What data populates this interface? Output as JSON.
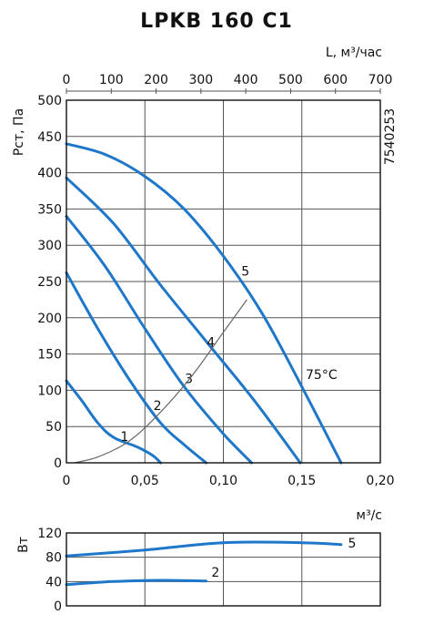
{
  "chart_data": [
    {
      "type": "line",
      "title": "LPKB 160 C1",
      "code": "7540253",
      "ylabel": "Рст, Па",
      "xlabel": "м³/с",
      "x2label": "L, м³/час",
      "xlim": [
        0,
        0.2
      ],
      "ylim": [
        0,
        500
      ],
      "x2lim": [
        0,
        700
      ],
      "x_ticks": [
        "0",
        "0,05",
        "0,10",
        "0,15",
        "0,20"
      ],
      "x_tick_values": [
        0,
        0.05,
        0.1,
        0.15,
        0.2
      ],
      "y_ticks": [
        "0",
        "50",
        "100",
        "150",
        "200",
        "250",
        "300",
        "350",
        "400",
        "450",
        "500"
      ],
      "y_tick_values": [
        0,
        50,
        100,
        150,
        200,
        250,
        300,
        350,
        400,
        450,
        500
      ],
      "x2_ticks": [
        "0",
        "100",
        "200",
        "300",
        "400",
        "500",
        "600",
        "700"
      ],
      "x2_tick_values": [
        0,
        100,
        200,
        300,
        400,
        500,
        600,
        700
      ],
      "annotation": "75°C",
      "series": [
        {
          "name": "1",
          "x": [
            0,
            0.01,
            0.02,
            0.03,
            0.045,
            0.055,
            0.06
          ],
          "y": [
            113,
            85,
            55,
            35,
            22,
            10,
            0
          ],
          "label_at": [
            0.037,
            30
          ]
        },
        {
          "name": "2",
          "x": [
            0,
            0.02,
            0.04,
            0.06,
            0.075,
            0.089
          ],
          "y": [
            262,
            185,
            115,
            55,
            25,
            0
          ],
          "label_at": [
            0.058,
            73
          ]
        },
        {
          "name": "3",
          "x": [
            0,
            0.025,
            0.05,
            0.075,
            0.1,
            0.118
          ],
          "y": [
            340,
            270,
            185,
            105,
            40,
            0
          ],
          "label_at": [
            0.078,
            110
          ]
        },
        {
          "name": "4",
          "x": [
            0,
            0.03,
            0.06,
            0.09,
            0.12,
            0.149
          ],
          "y": [
            393,
            330,
            245,
            165,
            85,
            0
          ],
          "label_at": [
            0.092,
            160
          ]
        },
        {
          "name": "5",
          "x": [
            0,
            0.025,
            0.05,
            0.075,
            0.1,
            0.125,
            0.15,
            0.175
          ],
          "y": [
            440,
            425,
            395,
            350,
            285,
            205,
            105,
            0
          ],
          "label_at": [
            0.114,
            258
          ]
        },
        {
          "name": "",
          "x": [
            0.005,
            0.02,
            0.04,
            0.06,
            0.08,
            0.1,
            0.115
          ],
          "y": [
            0,
            8,
            30,
            70,
            120,
            180,
            225
          ],
          "style": "system"
        }
      ]
    },
    {
      "type": "line",
      "ylabel": "Вт",
      "xlim": [
        0,
        0.2
      ],
      "ylim": [
        0,
        120
      ],
      "y_ticks": [
        "0",
        "40",
        "80",
        "120"
      ],
      "y_tick_values": [
        0,
        40,
        80,
        120
      ],
      "series": [
        {
          "name": "5",
          "x": [
            0,
            0.05,
            0.1,
            0.15,
            0.175
          ],
          "y": [
            82,
            92,
            104,
            104,
            101
          ],
          "label_at": [
            0.182,
            96
          ]
        },
        {
          "name": "2",
          "x": [
            0,
            0.03,
            0.06,
            0.089
          ],
          "y": [
            35,
            40,
            42,
            41
          ],
          "label_at": [
            0.095,
            48
          ]
        }
      ]
    }
  ]
}
